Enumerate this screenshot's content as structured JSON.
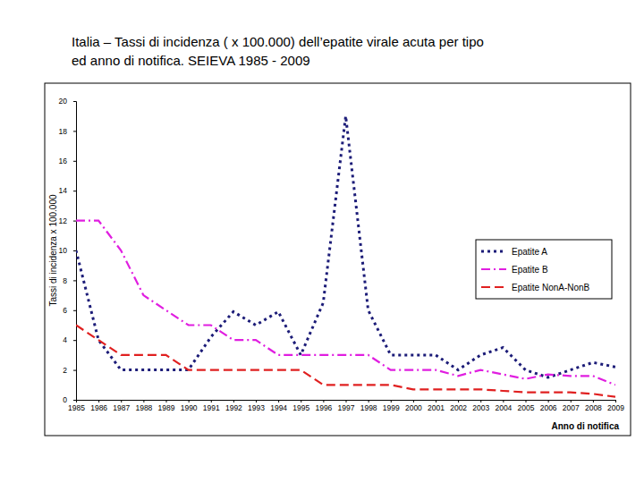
{
  "chart_data": {
    "type": "line",
    "title": "Italia – Tassi di incidenza ( x 100.000) dell’epatite virale acuta per tipo\ned anno di notifica. SEIEVA 1985 - 2009",
    "x_label": "Anno di notifica",
    "y_label": "Tassi di incidenza x 100.000",
    "x": [
      1985,
      1986,
      1987,
      1988,
      1989,
      1990,
      1991,
      1992,
      1993,
      1994,
      1995,
      1996,
      1997,
      1998,
      1999,
      2000,
      2001,
      2002,
      2003,
      2004,
      2005,
      2006,
      2007,
      2008,
      2009
    ],
    "xlim": [
      1985,
      2009
    ],
    "xticks": [
      1985,
      1986,
      1987,
      1988,
      1989,
      1990,
      1991,
      1992,
      1993,
      1994,
      1995,
      1996,
      1997,
      1998,
      1999,
      2000,
      2001,
      2002,
      2003,
      2004,
      2005,
      2006,
      2007,
      2008,
      2009
    ],
    "ylim": [
      0,
      20
    ],
    "yticks": [
      0,
      2,
      4,
      6,
      8,
      10,
      12,
      14,
      16,
      18,
      20
    ],
    "grid": false,
    "legend": "right",
    "series": [
      {
        "name": "Epatite A",
        "color": "#1c1c78",
        "line_style": "dotted",
        "values": [
          10,
          4,
          2,
          2,
          2,
          2,
          4.2,
          5.9,
          5,
          5.9,
          3,
          6.5,
          19,
          6,
          3,
          3,
          3,
          2,
          3,
          3.5,
          2,
          1.5,
          2,
          2.5,
          2.2
        ]
      },
      {
        "name": "Epatite B",
        "color": "#e01ee0",
        "line_style": "dashdot",
        "values": [
          12,
          12,
          10,
          7,
          6,
          5,
          5,
          4,
          4,
          3,
          3,
          3,
          3,
          3,
          2,
          2,
          2,
          1.6,
          2,
          1.7,
          1.4,
          1.7,
          1.6,
          1.6,
          1
        ]
      },
      {
        "name": "Epatite NonA-NonB",
        "color": "#e02020",
        "line_style": "dashed",
        "values": [
          5,
          4,
          3,
          3,
          3,
          2,
          2,
          2,
          2,
          2,
          2,
          1,
          1,
          1,
          1,
          0.7,
          0.7,
          0.7,
          0.7,
          0.6,
          0.5,
          0.5,
          0.5,
          0.4,
          0.2
        ]
      }
    ]
  }
}
